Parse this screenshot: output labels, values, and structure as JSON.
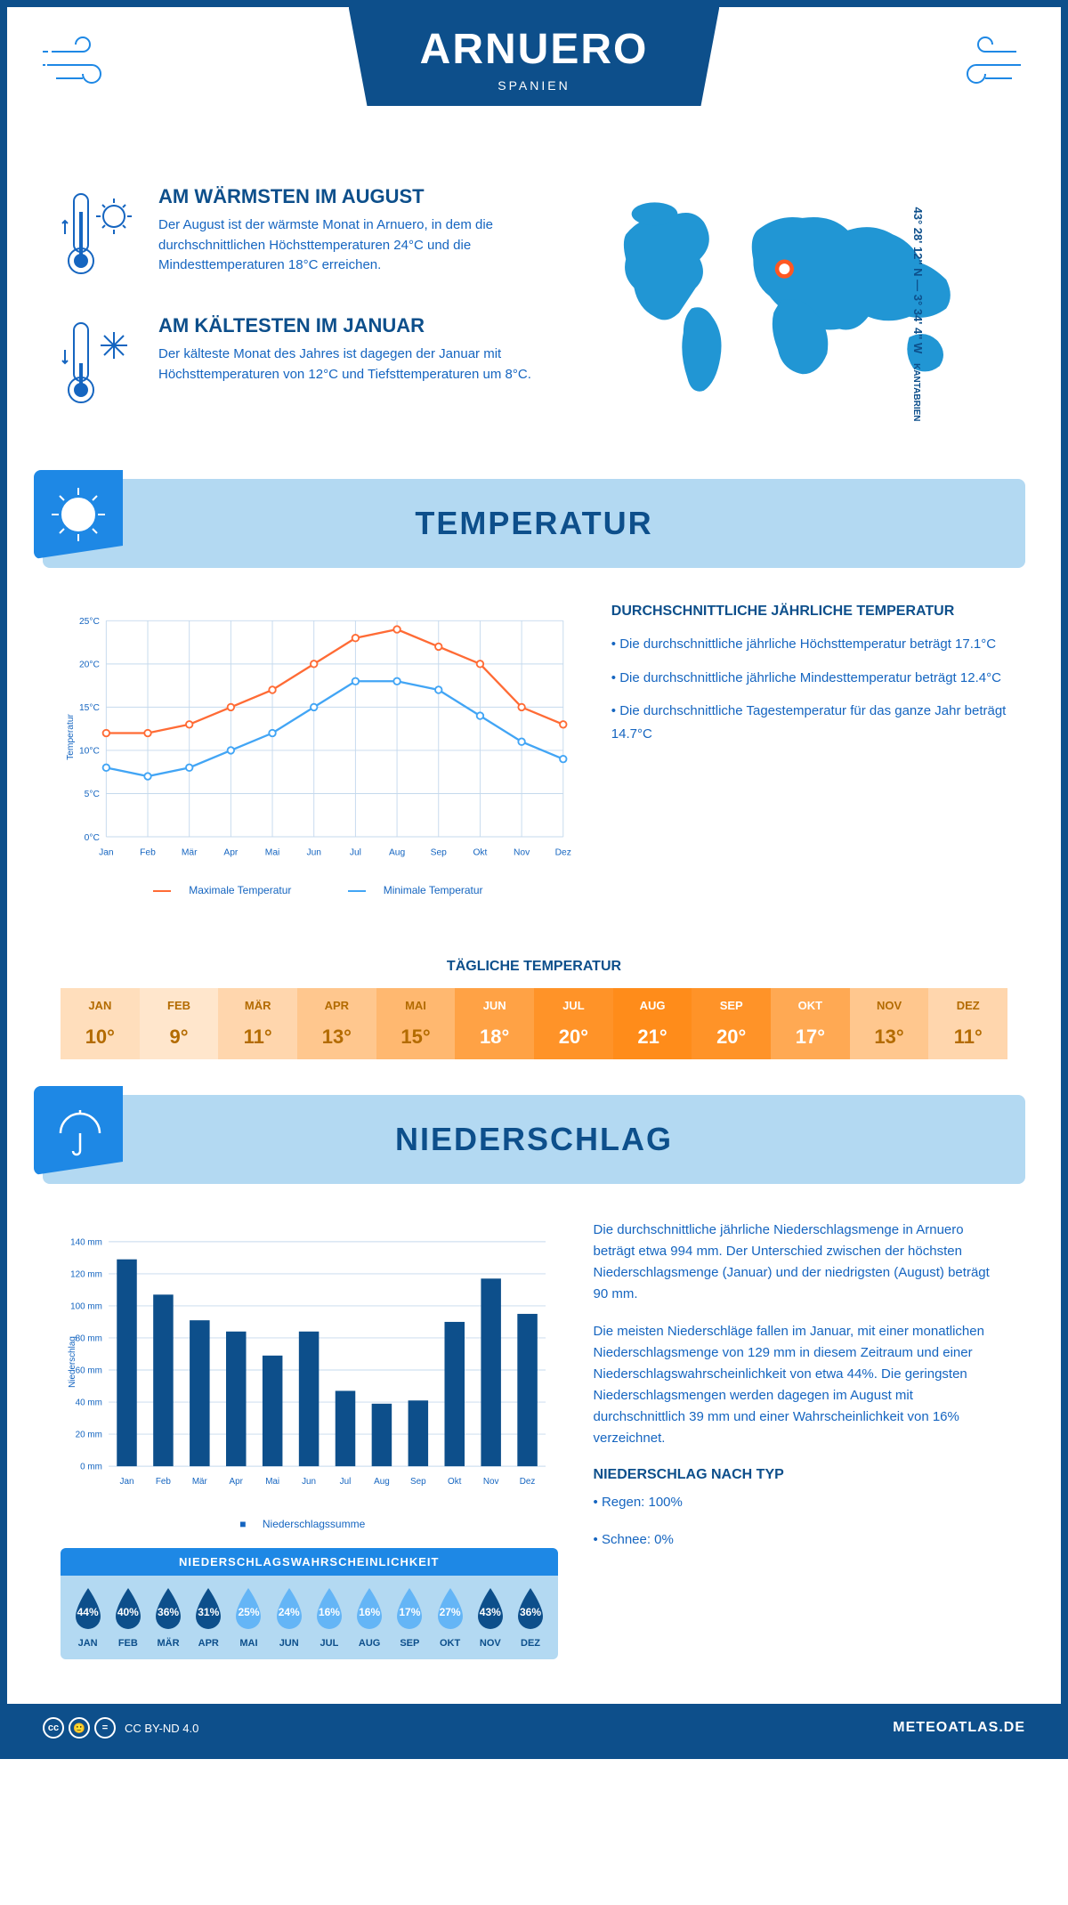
{
  "header": {
    "city": "ARNUERO",
    "country": "SPANIEN"
  },
  "coords": "43° 28' 12\" N — 3° 34' 4\" W",
  "region": "KANTABRIEN",
  "warmest": {
    "title": "AM WÄRMSTEN IM AUGUST",
    "text": "Der August ist der wärmste Monat in Arnuero, in dem die durchschnittlichen Höchsttemperaturen 24°C und die Mindesttemperaturen 18°C erreichen."
  },
  "coldest": {
    "title": "AM KÄLTESTEN IM JANUAR",
    "text": "Der kälteste Monat des Jahres ist dagegen der Januar mit Höchsttemperaturen von 12°C und Tiefsttemperaturen um 8°C."
  },
  "section_temp": "TEMPERATUR",
  "section_precip": "NIEDERSCHLAG",
  "temp_chart": {
    "months": [
      "Jan",
      "Feb",
      "Mär",
      "Apr",
      "Mai",
      "Jun",
      "Jul",
      "Aug",
      "Sep",
      "Okt",
      "Nov",
      "Dez"
    ],
    "max_series": [
      12,
      12,
      13,
      15,
      17,
      20,
      23,
      24,
      22,
      20,
      15,
      13
    ],
    "min_series": [
      8,
      7,
      8,
      10,
      12,
      15,
      18,
      18,
      17,
      14,
      11,
      9
    ],
    "ylabel": "Temperatur",
    "y_ticks": [
      0,
      5,
      10,
      15,
      20,
      25
    ],
    "y_tick_labels": [
      "0°C",
      "5°C",
      "10°C",
      "15°C",
      "20°C",
      "25°C"
    ],
    "colors": {
      "max": "#ff6b35",
      "min": "#42a5f5",
      "grid": "#c5d9ed"
    },
    "legend_max": "Maximale Temperatur",
    "legend_min": "Minimale Temperatur"
  },
  "temp_info": {
    "title": "DURCHSCHNITTLICHE JÄHRLICHE TEMPERATUR",
    "items": [
      "• Die durchschnittliche jährliche Höchsttemperatur beträgt 17.1°C",
      "• Die durchschnittliche jährliche Mindesttemperatur beträgt 12.4°C",
      "• Die durchschnittliche Tagestemperatur für das ganze Jahr beträgt 14.7°C"
    ]
  },
  "daily_temp": {
    "title": "TÄGLICHE TEMPERATUR",
    "months": [
      "JAN",
      "FEB",
      "MÄR",
      "APR",
      "MAI",
      "JUN",
      "JUL",
      "AUG",
      "SEP",
      "OKT",
      "NOV",
      "DEZ"
    ],
    "values": [
      "10°",
      "9°",
      "11°",
      "13°",
      "15°",
      "18°",
      "20°",
      "21°",
      "20°",
      "17°",
      "13°",
      "11°"
    ],
    "numeric": [
      10,
      9,
      11,
      13,
      15,
      18,
      20,
      21,
      20,
      17,
      13,
      11
    ],
    "palette": {
      "low": "#ffe6cc",
      "mid": "#ffb870",
      "high": "#ff8c1a"
    }
  },
  "precip_chart": {
    "months": [
      "Jan",
      "Feb",
      "Mär",
      "Apr",
      "Mai",
      "Jun",
      "Jul",
      "Aug",
      "Sep",
      "Okt",
      "Nov",
      "Dez"
    ],
    "values": [
      129,
      107,
      91,
      84,
      69,
      84,
      47,
      39,
      41,
      90,
      117,
      95
    ],
    "ylabel": "Niederschlag",
    "y_ticks": [
      0,
      20,
      40,
      60,
      80,
      100,
      120,
      140
    ],
    "bar_color": "#0d4f8b",
    "grid_color": "#c5d9ed",
    "legend": "Niederschlagssumme"
  },
  "precip_text": {
    "p1": "Die durchschnittliche jährliche Niederschlagsmenge in Arnuero beträgt etwa 994 mm. Der Unterschied zwischen der höchsten Niederschlagsmenge (Januar) und der niedrigsten (August) beträgt 90 mm.",
    "p2": "Die meisten Niederschläge fallen im Januar, mit einer monatlichen Niederschlagsmenge von 129 mm in diesem Zeitraum und einer Niederschlagswahrscheinlichkeit von etwa 44%. Die geringsten Niederschlagsmengen werden dagegen im August mit durchschnittlich 39 mm und einer Wahrscheinlichkeit von 16% verzeichnet.",
    "type_title": "NIEDERSCHLAG NACH TYP",
    "type_items": [
      "• Regen: 100%",
      "• Schnee: 0%"
    ]
  },
  "precip_prob": {
    "title": "NIEDERSCHLAGSWAHRSCHEINLICHKEIT",
    "months": [
      "JAN",
      "FEB",
      "MÄR",
      "APR",
      "MAI",
      "JUN",
      "JUL",
      "AUG",
      "SEP",
      "OKT",
      "NOV",
      "DEZ"
    ],
    "values": [
      44,
      40,
      36,
      31,
      25,
      24,
      16,
      16,
      17,
      27,
      43,
      36
    ],
    "drop_dark": "#0d4f8b",
    "drop_light": "#64b5f6"
  },
  "footer": {
    "license": "CC BY-ND 4.0",
    "site": "METEOATLAS.DE"
  }
}
